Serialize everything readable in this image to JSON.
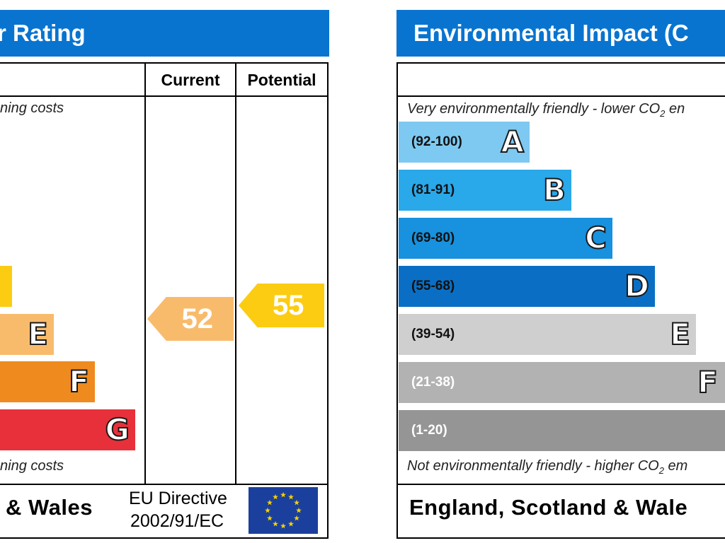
{
  "energy_panel": {
    "title": "r Rating",
    "col_current": "Current",
    "col_potential": "Potential",
    "top_caption": "ning costs",
    "bottom_caption": "ning costs",
    "bars": [
      {
        "letter": "E",
        "color": "#f8bb6c"
      },
      {
        "letter": "F",
        "color": "#ef8a1f"
      },
      {
        "letter": "G",
        "color": "#e8303a"
      }
    ],
    "current_value": "52",
    "current_color": "#f8bb6c",
    "potential_value": "55",
    "potential_color": "#fccc12",
    "footer": "& Wales",
    "eu_line1": "EU Directive",
    "eu_line2": "2002/91/EC"
  },
  "env_panel": {
    "title": "Environmental Impact (C",
    "top_caption_pre": "Very environmentally friendly - lower CO",
    "top_caption_sub": "2",
    "top_caption_post": " en",
    "bottom_caption_pre": "Not environmentally friendly - higher CO",
    "bottom_caption_sub": "2",
    "bottom_caption_post": " em",
    "bands": [
      {
        "range": "(92-100)",
        "letter": "A",
        "color": "#7ec9f1"
      },
      {
        "range": "(81-91)",
        "letter": "B",
        "color": "#29a8ea"
      },
      {
        "range": "(69-80)",
        "letter": "C",
        "color": "#1891de"
      },
      {
        "range": "(55-68)",
        "letter": "D",
        "color": "#0a6fc4"
      },
      {
        "range": "(39-54)",
        "letter": "E",
        "color": "#cfcfcf"
      },
      {
        "range": "(21-38)",
        "letter": "F",
        "color": "#b2b2b2"
      },
      {
        "range": "(1-20)",
        "letter": "",
        "color": "#959595"
      }
    ],
    "footer": "England, Scotland & Wale"
  }
}
